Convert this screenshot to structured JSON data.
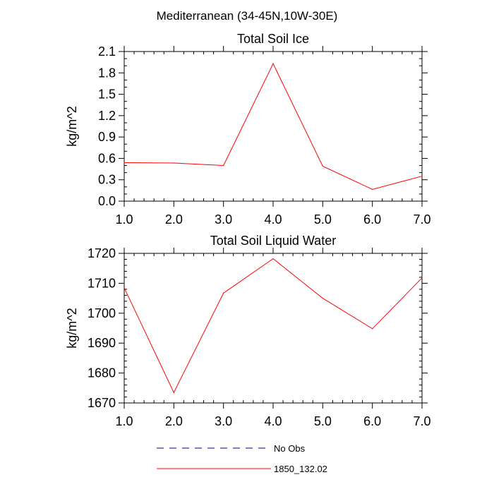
{
  "suptitle": "Mediterranean (34-45N,10W-30E)",
  "colors": {
    "series_line": "#ff0000",
    "obs_line": "#00008b",
    "axes": "#000000"
  },
  "chart_data": [
    {
      "type": "line",
      "title": "Total Soil Ice",
      "xlabel": "",
      "ylabel": "kg/m^2",
      "xlim": [
        1,
        7
      ],
      "ylim": [
        0,
        2.1
      ],
      "x_ticks": [
        "1.0",
        "2.0",
        "3.0",
        "4.0",
        "5.0",
        "6.0",
        "7.0"
      ],
      "y_ticks": [
        "0.0",
        "0.3",
        "0.6",
        "0.9",
        "1.2",
        "1.5",
        "1.8",
        "2.1"
      ],
      "grid": false,
      "series": [
        {
          "name": "1850_132.02",
          "x": [
            1,
            2,
            3,
            4,
            5,
            6,
            7
          ],
          "y": [
            0.54,
            0.535,
            0.5,
            1.93,
            0.49,
            0.165,
            0.35
          ]
        }
      ]
    },
    {
      "type": "line",
      "title": "Total Soil Liquid Water",
      "xlabel": "",
      "ylabel": "kg/m^2",
      "xlim": [
        1,
        7
      ],
      "ylim": [
        1670,
        1720
      ],
      "x_ticks": [
        "1.0",
        "2.0",
        "3.0",
        "4.0",
        "5.0",
        "6.0",
        "7.0"
      ],
      "y_ticks": [
        "1670",
        "1680",
        "1690",
        "1700",
        "1710",
        "1720"
      ],
      "grid": false,
      "series": [
        {
          "name": "1850_132.02",
          "x": [
            1,
            2,
            3,
            4,
            5,
            6,
            7
          ],
          "y": [
            1708.5,
            1673.5,
            1706.7,
            1718.2,
            1705,
            1694.8,
            1711.8
          ]
        }
      ]
    }
  ],
  "legend": {
    "items": [
      {
        "label": "No Obs",
        "style": "dashed"
      },
      {
        "label": "1850_132.02",
        "style": "solid"
      }
    ]
  }
}
